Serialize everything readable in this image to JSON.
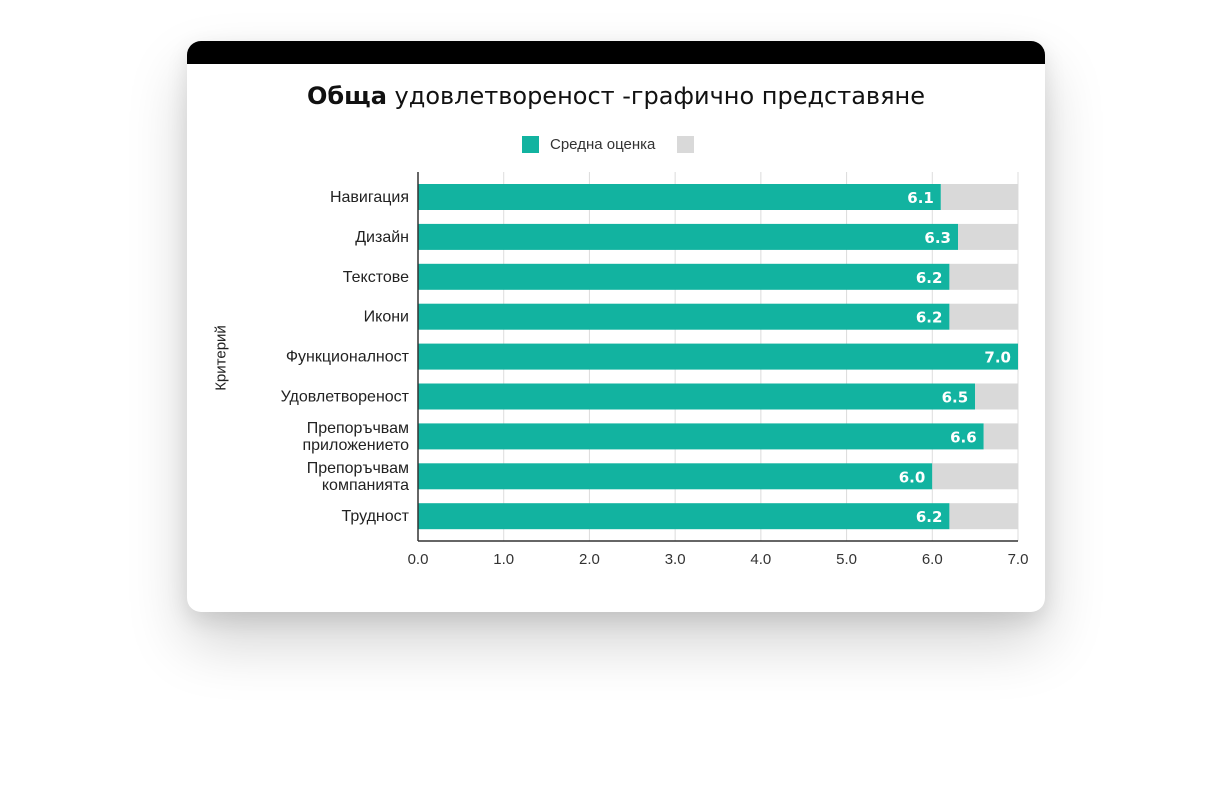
{
  "chart_data": {
    "type": "bar",
    "orientation": "horizontal",
    "stacked": true,
    "title_bold": "Обща",
    "title_rest": " удовлетвореност -графично представяне",
    "ylabel": "Критерий",
    "xlabel": "",
    "categories": [
      [
        "Навигация"
      ],
      [
        "Дизайн"
      ],
      [
        "Текстове"
      ],
      [
        "Икони"
      ],
      [
        "Функционалност"
      ],
      [
        "Удовлетвореност"
      ],
      [
        "Препоръчвам",
        "приложението"
      ],
      [
        "Препоръчвам",
        "компанията"
      ],
      [
        "Трудност"
      ]
    ],
    "series": [
      {
        "name": "Средна оценка",
        "color": "#12b3a0",
        "values": [
          6.1,
          6.3,
          6.2,
          6.2,
          7.0,
          6.5,
          6.6,
          6.0,
          6.2
        ],
        "data_labels": [
          "6.1",
          "6.3",
          "6.2",
          "6.2",
          "7.0",
          "6.5",
          "6.6",
          "6.0",
          "6.2"
        ]
      },
      {
        "name": "",
        "color": "#d9d9d9",
        "values": [
          0.9,
          0.7,
          0.8,
          0.8,
          0.0,
          0.5,
          0.4,
          1.0,
          0.8
        ]
      }
    ],
    "xlim": [
      0,
      7
    ],
    "x_ticks": [
      "0.0",
      "1.0",
      "2.0",
      "3.0",
      "4.0",
      "5.0",
      "6.0",
      "7.0"
    ],
    "grid": true,
    "legend_position": "top"
  }
}
